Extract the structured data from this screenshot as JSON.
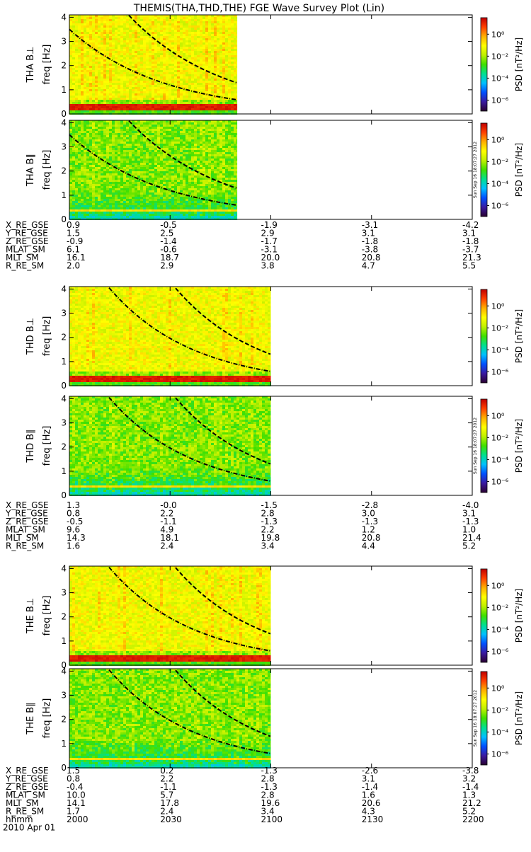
{
  "title": "THEMIS(THA,THD,THE) FGE Wave Survey Plot (Lin)",
  "colorbar": {
    "label": "PSD [nT²/Hz]",
    "ticks": [
      "10⁰",
      "10⁻²",
      "10⁻⁴",
      "10⁻⁶"
    ],
    "tick_exponents": [
      0,
      -2,
      -4,
      -6
    ],
    "stamp": "Sun Sep 16 18:07:27 2012"
  },
  "colormap": [
    "#2a0030",
    "#3a1aa0",
    "#0050ff",
    "#00c0ff",
    "#00e090",
    "#40e000",
    "#c0f000",
    "#ffff00",
    "#ffb000",
    "#ff4000",
    "#c00000"
  ],
  "freq_axis": {
    "label": "freq [Hz]",
    "ticks": [
      "0",
      "1",
      "2",
      "3",
      "4"
    ],
    "range": [
      0,
      4.1
    ]
  },
  "time_axis": {
    "start_hhmm": 2000,
    "end_hhmm": 2200,
    "ticks": [
      "2000",
      "2030",
      "2100",
      "2130",
      "2200"
    ]
  },
  "date_label": "2010 Apr 01",
  "hhmm_label": "hhmm",
  "groups": [
    {
      "probe": "THA",
      "panels": [
        {
          "name": "THA B⊥",
          "type": "perp"
        },
        {
          "name": "THA B∥",
          "type": "par"
        }
      ],
      "data_end_hhmm": 2050,
      "ephemeris": [
        {
          "label": "X_RE_GSE",
          "values": [
            "0.9",
            "-0.5",
            "-1.9",
            "-3.1",
            "-4.2"
          ]
        },
        {
          "label": "Y_RE_GSE",
          "values": [
            "1.5",
            "2.5",
            "2.9",
            "3.1",
            "3.1"
          ]
        },
        {
          "label": "Z_RE_GSE",
          "values": [
            "-0.9",
            "-1.4",
            "-1.7",
            "-1.8",
            "-1.8"
          ]
        },
        {
          "label": "MLAT_SM",
          "values": [
            "6.1",
            "-0.6",
            "-3.1",
            "-3.8",
            "-3.7"
          ]
        },
        {
          "label": "MLT_SM",
          "values": [
            "16.1",
            "18.7",
            "20.0",
            "20.8",
            "21.3"
          ]
        },
        {
          "label": "R_RE_SM",
          "values": [
            "2.0",
            "2.9",
            "3.8",
            "4.7",
            "5.5"
          ]
        }
      ]
    },
    {
      "probe": "THD",
      "panels": [
        {
          "name": "THD B⊥",
          "type": "perp"
        },
        {
          "name": "THD B∥",
          "type": "par"
        }
      ],
      "data_end_hhmm": 2100,
      "ephemeris": [
        {
          "label": "X_RE_GSE",
          "values": [
            "1.3",
            "-0.0",
            "-1.5",
            "-2.8",
            "-4.0"
          ]
        },
        {
          "label": "Y_RE_GSE",
          "values": [
            "0.8",
            "2.2",
            "2.8",
            "3.0",
            "3.1"
          ]
        },
        {
          "label": "Z_RE_GSE",
          "values": [
            "-0.5",
            "-1.1",
            "-1.3",
            "-1.3",
            "-1.3"
          ]
        },
        {
          "label": "MLAT_SM",
          "values": [
            "9.6",
            "4.9",
            "2.2",
            "1.2",
            "1.0"
          ]
        },
        {
          "label": "MLT_SM",
          "values": [
            "14.3",
            "18.1",
            "19.8",
            "20.8",
            "21.4"
          ]
        },
        {
          "label": "R_RE_SM",
          "values": [
            "1.6",
            "2.4",
            "3.4",
            "4.4",
            "5.2"
          ]
        }
      ]
    },
    {
      "probe": "THE",
      "panels": [
        {
          "name": "THE B⊥",
          "type": "perp"
        },
        {
          "name": "THE B∥",
          "type": "par"
        }
      ],
      "data_end_hhmm": 2100,
      "ephemeris": [
        {
          "label": "X_RE_GSE",
          "values": [
            "1.5",
            "0.2",
            "-1.3",
            "-2.6",
            "-3.8"
          ]
        },
        {
          "label": "Y_RE_GSE",
          "values": [
            "0.8",
            "2.2",
            "2.8",
            "3.1",
            "3.2"
          ]
        },
        {
          "label": "Z_RE_GSE",
          "values": [
            "-0.4",
            "-1.1",
            "-1.3",
            "-1.4",
            "-1.4"
          ]
        },
        {
          "label": "MLAT_SM",
          "values": [
            "10.0",
            "5.7",
            "2.8",
            "1.6",
            "1.3"
          ]
        },
        {
          "label": "MLT_SM",
          "values": [
            "14.1",
            "17.8",
            "19.6",
            "20.6",
            "21.2"
          ]
        },
        {
          "label": "R_RE_SM",
          "values": [
            "1.7",
            "2.4",
            "3.4",
            "4.3",
            "5.2"
          ]
        }
      ]
    }
  ],
  "chart_data": {
    "type": "heatmap",
    "title": "THEMIS(THA,THD,THE) FGE Wave Survey Plot (Lin)",
    "xlabel": "hhmm",
    "ylabel": "freq [Hz]",
    "x_ticks": [
      "2000",
      "2030",
      "2100",
      "2130",
      "2200"
    ],
    "ylim": [
      0,
      4
    ],
    "colorbar_label": "PSD [nT²/Hz]",
    "colorbar_ticks": [
      "10⁰",
      "10⁻²",
      "10⁻⁴",
      "10⁻⁶"
    ],
    "series": [
      {
        "name": "THA B⊥",
        "x_range": [
          "2000",
          "2050"
        ]
      },
      {
        "name": "THA B∥",
        "x_range": [
          "2000",
          "2050"
        ]
      },
      {
        "name": "THD B⊥",
        "x_range": [
          "2000",
          "2100"
        ]
      },
      {
        "name": "THD B∥",
        "x_range": [
          "2000",
          "2100"
        ]
      },
      {
        "name": "THE B⊥",
        "x_range": [
          "2000",
          "2100"
        ]
      },
      {
        "name": "THE B∥",
        "x_range": [
          "2000",
          "2100"
        ]
      }
    ]
  }
}
